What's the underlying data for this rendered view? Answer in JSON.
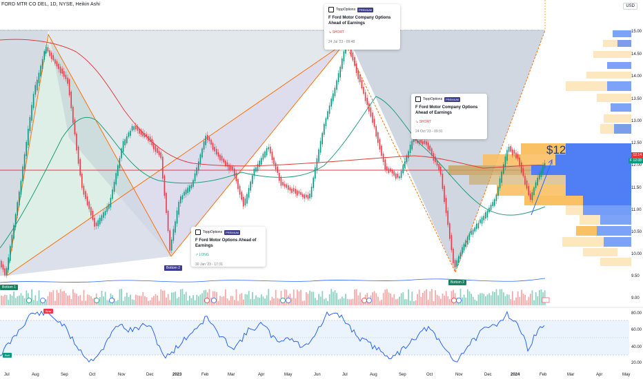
{
  "header": {
    "title": "FORD MTR CO DEL, 1D, NYSE, Heikin Ashi",
    "currency": "USD"
  },
  "price_axis": [
    "15.00",
    "14.50",
    "14.00",
    "13.50",
    "13.00",
    "12.50",
    "12.00",
    "11.50",
    "11.00",
    "10.50",
    "10.00",
    "9.50",
    "9.00"
  ],
  "price_labels": {
    "last": "12.14",
    "prev": "12.08",
    "prev_tag": "F"
  },
  "rsi_axis": [
    "80.00",
    "60.00",
    "40.00",
    "20.00"
  ],
  "x_axis": [
    "Jul",
    "Aug",
    "Sep",
    "Oct",
    "Nov",
    "Dec",
    "2023",
    "Feb",
    "Mar",
    "Apr",
    "May",
    "Jun",
    "Jul",
    "Aug",
    "Sep",
    "Oct",
    "Nov",
    "Dec",
    "2024",
    "Feb",
    "Mar",
    "Apr",
    "May"
  ],
  "annotation": {
    "big_price": "$12"
  },
  "ideas": [
    {
      "brand": "ToppOptions",
      "badge": "PREMIUM",
      "title": "F Ford Motor Company Options Ahead of Earnings",
      "side": "↘ SHORT",
      "time": "24 Jul '23 - 09:48",
      "color": "#f23645"
    },
    {
      "brand": "ToppOptions",
      "badge": "PREMIUM",
      "title": "F Ford Motor Company Options Ahead of Earnings",
      "side": "↘ SHORT",
      "time": "24 Oct '23 - 09:31",
      "color": "#f23645"
    },
    {
      "brand": "ToppOptions",
      "badge": "PREMIUM",
      "title": "F Ford Motor Options Ahead of Earnings",
      "side": "↗ LONG",
      "time": "30 Jan '23 - 17:31",
      "color": "#22ab94"
    }
  ],
  "tags": {
    "bottom1": "Bottom 1",
    "bottom2a": "Bottom 2",
    "bottom2b": "Bottom 2",
    "rsi_high": "Bear",
    "rsi_low": "Bull"
  },
  "colors": {
    "up": "#089981",
    "down": "#f23645",
    "ma_red": "#e53935",
    "ma_green": "#1b9e77",
    "orange": "#ff6d00",
    "rsi": "#2962ff"
  }
}
